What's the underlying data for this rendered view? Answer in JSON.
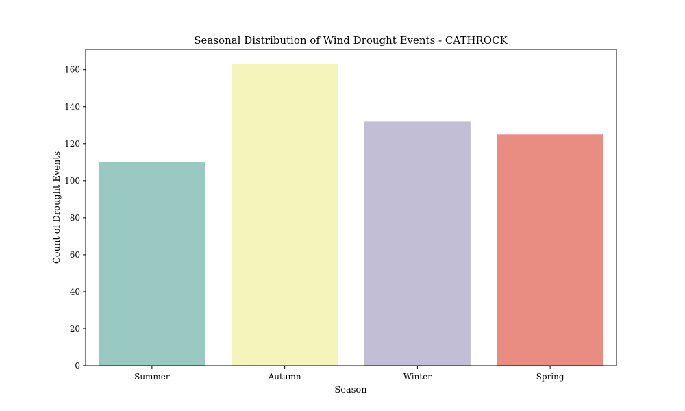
{
  "chart_data": {
    "type": "bar",
    "title": "Seasonal Distribution of Wind Drought Events - CATHROCK",
    "xlabel": "Season",
    "ylabel": "Count of Drought Events",
    "categories": [
      "Summer",
      "Autumn",
      "Winter",
      "Spring"
    ],
    "values": [
      110,
      163,
      132,
      125
    ],
    "colors": [
      "#99c9c0",
      "#f5f5bb",
      "#c1bed6",
      "#e98c81"
    ],
    "ylim": [
      0,
      171
    ],
    "yticks": [
      0,
      20,
      40,
      60,
      80,
      100,
      120,
      140,
      160
    ],
    "grid": false,
    "legend": "none"
  }
}
